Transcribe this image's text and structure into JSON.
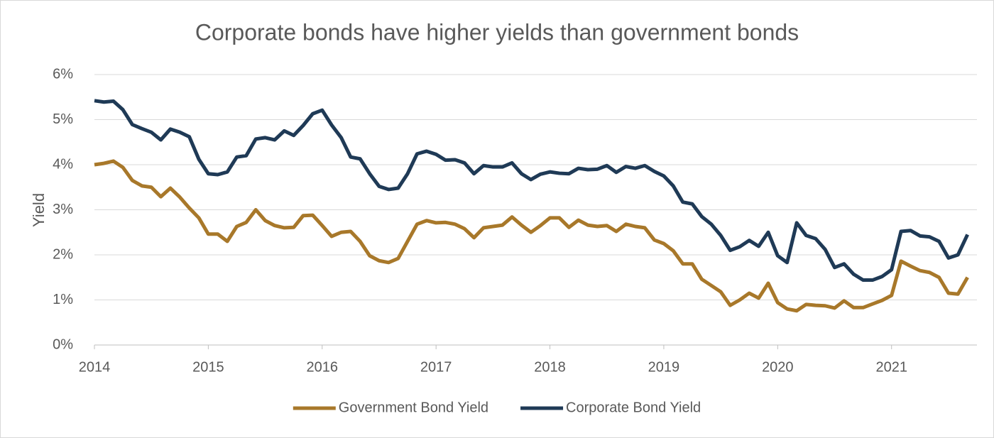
{
  "chart_data": {
    "type": "line",
    "title": "Corporate bonds have higher yields than government bonds",
    "y_label": "Yield",
    "x": [
      2014,
      2014.083,
      2014.167,
      2014.25,
      2014.333,
      2014.417,
      2014.5,
      2014.583,
      2014.667,
      2014.75,
      2014.833,
      2014.917,
      2015,
      2015.083,
      2015.167,
      2015.25,
      2015.333,
      2015.417,
      2015.5,
      2015.583,
      2015.667,
      2015.75,
      2015.833,
      2015.917,
      2016,
      2016.083,
      2016.167,
      2016.25,
      2016.333,
      2016.417,
      2016.5,
      2016.583,
      2016.667,
      2016.75,
      2016.833,
      2016.917,
      2017,
      2017.083,
      2017.167,
      2017.25,
      2017.333,
      2017.417,
      2017.5,
      2017.583,
      2017.667,
      2017.75,
      2017.833,
      2017.917,
      2018,
      2018.083,
      2018.167,
      2018.25,
      2018.333,
      2018.417,
      2018.5,
      2018.583,
      2018.667,
      2018.75,
      2018.833,
      2018.917,
      2019,
      2019.083,
      2019.167,
      2019.25,
      2019.333,
      2019.417,
      2019.5,
      2019.583,
      2019.667,
      2019.75,
      2019.833,
      2019.917,
      2020,
      2020.083,
      2020.167,
      2020.25,
      2020.333,
      2020.417,
      2020.5,
      2020.583,
      2020.667,
      2020.75,
      2020.833,
      2020.917,
      2021,
      2021.083,
      2021.167,
      2021.25,
      2021.333,
      2021.417,
      2021.5,
      2021.583,
      2021.667
    ],
    "series": [
      {
        "name": "Government Bond Yield",
        "color": "#a8782a",
        "values": [
          4.0,
          4.03,
          4.08,
          3.94,
          3.65,
          3.53,
          3.5,
          3.29,
          3.48,
          3.28,
          3.04,
          2.82,
          2.46,
          2.46,
          2.3,
          2.63,
          2.72,
          3.0,
          2.76,
          2.65,
          2.6,
          2.61,
          2.87,
          2.88,
          2.65,
          2.41,
          2.5,
          2.52,
          2.3,
          1.98,
          1.87,
          1.83,
          1.92,
          2.3,
          2.68,
          2.76,
          2.71,
          2.72,
          2.68,
          2.58,
          2.38,
          2.6,
          2.63,
          2.66,
          2.84,
          2.66,
          2.5,
          2.65,
          2.82,
          2.82,
          2.61,
          2.77,
          2.66,
          2.63,
          2.65,
          2.52,
          2.68,
          2.63,
          2.6,
          2.33,
          2.25,
          2.09,
          1.8,
          1.8,
          1.46,
          1.32,
          1.18,
          0.88,
          1.0,
          1.15,
          1.04,
          1.37,
          0.94,
          0.8,
          0.76,
          0.9,
          0.88,
          0.87,
          0.82,
          0.98,
          0.83,
          0.83,
          0.91,
          0.99,
          1.1,
          1.86,
          1.75,
          1.65,
          1.61,
          1.5,
          1.15,
          1.13,
          1.5
        ]
      },
      {
        "name": "Corporate Bond Yield",
        "color": "#1f3a56",
        "values": [
          5.42,
          5.39,
          5.41,
          5.22,
          4.89,
          4.8,
          4.72,
          4.55,
          4.79,
          4.72,
          4.62,
          4.12,
          3.8,
          3.78,
          3.84,
          4.17,
          4.2,
          4.57,
          4.6,
          4.55,
          4.75,
          4.65,
          4.87,
          5.13,
          5.21,
          4.88,
          4.6,
          4.17,
          4.13,
          3.8,
          3.52,
          3.45,
          3.48,
          3.8,
          4.24,
          4.3,
          4.23,
          4.1,
          4.11,
          4.04,
          3.8,
          3.98,
          3.95,
          3.95,
          4.04,
          3.8,
          3.67,
          3.79,
          3.84,
          3.81,
          3.8,
          3.92,
          3.89,
          3.9,
          3.98,
          3.83,
          3.96,
          3.92,
          3.98,
          3.85,
          3.75,
          3.53,
          3.17,
          3.13,
          2.85,
          2.68,
          2.43,
          2.1,
          2.18,
          2.32,
          2.19,
          2.5,
          1.98,
          1.83,
          2.71,
          2.43,
          2.36,
          2.12,
          1.72,
          1.8,
          1.57,
          1.44,
          1.44,
          1.52,
          1.67,
          2.52,
          2.54,
          2.42,
          2.4,
          2.3,
          1.93,
          2.0,
          2.45
        ]
      }
    ],
    "xlim": [
      2014,
      2021.75
    ],
    "xticks": [
      2014,
      2015,
      2016,
      2017,
      2018,
      2019,
      2020,
      2021
    ],
    "ylim": [
      0,
      6
    ],
    "yticks": [
      {
        "value": 0,
        "label": "0%"
      },
      {
        "value": 1,
        "label": "1%"
      },
      {
        "value": 2,
        "label": "2%"
      },
      {
        "value": 3,
        "label": "3%"
      },
      {
        "value": 4,
        "label": "4%"
      },
      {
        "value": 5,
        "label": "5%"
      },
      {
        "value": 6,
        "label": "6%"
      }
    ],
    "grid": true,
    "legend": "bottom"
  }
}
